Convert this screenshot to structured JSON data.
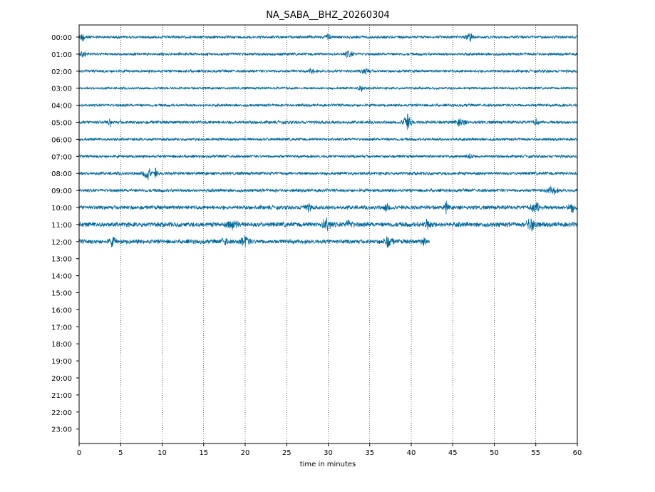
{
  "chart_data": {
    "type": "line",
    "title": "NA_SABA__BHZ_20260304",
    "xlabel": "time in minutes",
    "ylabel": "",
    "xlim": [
      0,
      60
    ],
    "x_ticks": [
      0,
      5,
      10,
      15,
      20,
      25,
      30,
      35,
      40,
      45,
      50,
      55,
      60
    ],
    "grid": "vertical dotted at each 5 minutes",
    "trace_color": "#00679a",
    "rows": [
      {
        "label": "00:00",
        "duration_min": 60,
        "amplitude": 0.7,
        "events": [
          {
            "t": 0.5,
            "amp": 1.8,
            "w": 0.8
          },
          {
            "t": 30.0,
            "amp": 1.4,
            "w": 0.6
          },
          {
            "t": 47.0,
            "amp": 1.7,
            "w": 0.9
          }
        ]
      },
      {
        "label": "01:00",
        "duration_min": 60,
        "amplitude": 0.7,
        "events": [
          {
            "t": 0.5,
            "amp": 1.5,
            "w": 0.5
          },
          {
            "t": 32.5,
            "amp": 1.4,
            "w": 0.9
          }
        ]
      },
      {
        "label": "02:00",
        "duration_min": 60,
        "amplitude": 0.7,
        "events": [
          {
            "t": 28.0,
            "amp": 1.4,
            "w": 0.5
          },
          {
            "t": 34.5,
            "amp": 1.3,
            "w": 0.8
          }
        ]
      },
      {
        "label": "03:00",
        "duration_min": 60,
        "amplitude": 0.6,
        "events": [
          {
            "t": 34.0,
            "amp": 1.3,
            "w": 0.7
          }
        ]
      },
      {
        "label": "04:00",
        "duration_min": 60,
        "amplitude": 0.7,
        "events": []
      },
      {
        "label": "05:00",
        "duration_min": 60,
        "amplitude": 0.8,
        "events": [
          {
            "t": 3.7,
            "amp": 1.6,
            "w": 0.3
          },
          {
            "t": 39.5,
            "amp": 3.4,
            "w": 0.9
          },
          {
            "t": 46.0,
            "amp": 1.6,
            "w": 1.0
          },
          {
            "t": 55.0,
            "amp": 1.3,
            "w": 0.5
          }
        ]
      },
      {
        "label": "06:00",
        "duration_min": 60,
        "amplitude": 0.7,
        "events": []
      },
      {
        "label": "07:00",
        "duration_min": 60,
        "amplitude": 0.7,
        "events": [
          {
            "t": 47.0,
            "amp": 1.5,
            "w": 0.7
          }
        ]
      },
      {
        "label": "08:00",
        "duration_min": 60,
        "amplitude": 0.8,
        "events": [
          {
            "t": 8.2,
            "amp": 3.3,
            "w": 0.8
          },
          {
            "t": 9.2,
            "amp": 2.0,
            "w": 0.4
          }
        ]
      },
      {
        "label": "09:00",
        "duration_min": 60,
        "amplitude": 0.8,
        "events": [
          {
            "t": 57.0,
            "amp": 1.6,
            "w": 1.2
          }
        ]
      },
      {
        "label": "10:00",
        "duration_min": 60,
        "amplitude": 1.0,
        "events": [
          {
            "t": 27.5,
            "amp": 1.5,
            "w": 1.0
          },
          {
            "t": 37.0,
            "amp": 1.6,
            "w": 0.6
          },
          {
            "t": 44.2,
            "amp": 2.2,
            "w": 0.5
          },
          {
            "t": 55.0,
            "amp": 2.0,
            "w": 1.2
          },
          {
            "t": 59.3,
            "amp": 1.9,
            "w": 0.8
          }
        ]
      },
      {
        "label": "11:00",
        "duration_min": 60,
        "amplitude": 1.2,
        "events": [
          {
            "t": 18.5,
            "amp": 1.8,
            "w": 1.2
          },
          {
            "t": 29.8,
            "amp": 2.6,
            "w": 1.0
          },
          {
            "t": 32.5,
            "amp": 1.8,
            "w": 0.8
          },
          {
            "t": 42.0,
            "amp": 1.6,
            "w": 0.8
          },
          {
            "t": 54.5,
            "amp": 2.8,
            "w": 1.0
          }
        ]
      },
      {
        "label": "12:00",
        "duration_min": 42.2,
        "amplitude": 1.1,
        "events": [
          {
            "t": 4.0,
            "amp": 1.8,
            "w": 0.7
          },
          {
            "t": 17.5,
            "amp": 1.8,
            "w": 0.6
          },
          {
            "t": 20.0,
            "amp": 2.0,
            "w": 1.0
          },
          {
            "t": 37.2,
            "amp": 2.3,
            "w": 1.0
          },
          {
            "t": 41.5,
            "amp": 1.6,
            "w": 0.5
          }
        ]
      },
      {
        "label": "13:00",
        "duration_min": 0,
        "amplitude": 0,
        "events": []
      },
      {
        "label": "14:00",
        "duration_min": 0,
        "amplitude": 0,
        "events": []
      },
      {
        "label": "15:00",
        "duration_min": 0,
        "amplitude": 0,
        "events": []
      },
      {
        "label": "16:00",
        "duration_min": 0,
        "amplitude": 0,
        "events": []
      },
      {
        "label": "17:00",
        "duration_min": 0,
        "amplitude": 0,
        "events": []
      },
      {
        "label": "18:00",
        "duration_min": 0,
        "amplitude": 0,
        "events": []
      },
      {
        "label": "19:00",
        "duration_min": 0,
        "amplitude": 0,
        "events": []
      },
      {
        "label": "20:00",
        "duration_min": 0,
        "amplitude": 0,
        "events": []
      },
      {
        "label": "21:00",
        "duration_min": 0,
        "amplitude": 0,
        "events": []
      },
      {
        "label": "22:00",
        "duration_min": 0,
        "amplitude": 0,
        "events": []
      },
      {
        "label": "23:00",
        "duration_min": 0,
        "amplitude": 0,
        "events": []
      }
    ]
  }
}
